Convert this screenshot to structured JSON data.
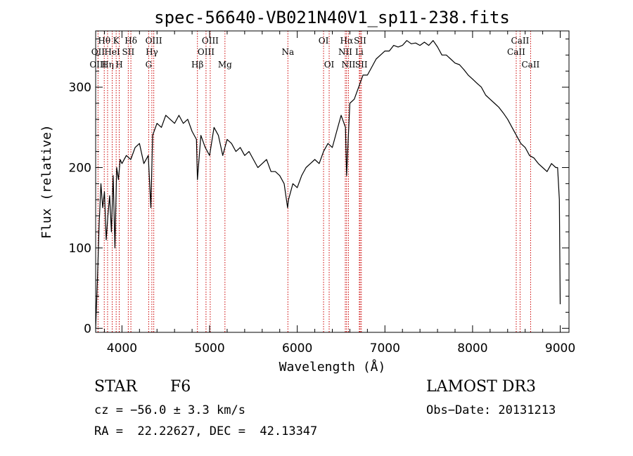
{
  "chart_data": {
    "type": "line",
    "title": "spec-56640-VB021N40V1_sp11-238.fits",
    "xlabel": "Wavelength (Å)",
    "ylabel": "Flux (relative)",
    "xlim": [
      3700,
      9100
    ],
    "ylim": [
      -5,
      370
    ],
    "x_ticks": [
      4000,
      5000,
      6000,
      7000,
      8000,
      9000
    ],
    "y_ticks": [
      0,
      100,
      200,
      300
    ],
    "series": [
      {
        "name": "spectrum",
        "x": [
          3700,
          3720,
          3740,
          3760,
          3780,
          3800,
          3820,
          3840,
          3860,
          3880,
          3900,
          3920,
          3940,
          3960,
          3980,
          4000,
          4050,
          4100,
          4150,
          4200,
          4250,
          4300,
          4330,
          4350,
          4400,
          4450,
          4500,
          4550,
          4600,
          4650,
          4700,
          4750,
          4800,
          4850,
          4861,
          4900,
          4950,
          5000,
          5050,
          5100,
          5150,
          5200,
          5250,
          5300,
          5350,
          5400,
          5450,
          5500,
          5550,
          5600,
          5650,
          5700,
          5750,
          5800,
          5850,
          5890,
          5900,
          5950,
          6000,
          6050,
          6100,
          6150,
          6200,
          6250,
          6300,
          6350,
          6400,
          6450,
          6500,
          6550,
          6563,
          6600,
          6650,
          6700,
          6750,
          6800,
          6850,
          6900,
          6950,
          7000,
          7050,
          7100,
          7150,
          7200,
          7250,
          7300,
          7350,
          7400,
          7450,
          7500,
          7550,
          7600,
          7650,
          7700,
          7750,
          7800,
          7850,
          7900,
          7950,
          8000,
          8050,
          8100,
          8150,
          8200,
          8250,
          8300,
          8350,
          8400,
          8450,
          8500,
          8550,
          8600,
          8650,
          8700,
          8750,
          8800,
          8850,
          8900,
          8950,
          8970,
          8990,
          9000
        ],
        "y": [
          0,
          60,
          130,
          180,
          150,
          170,
          110,
          140,
          165,
          120,
          190,
          100,
          200,
          185,
          210,
          205,
          215,
          210,
          225,
          230,
          205,
          215,
          150,
          240,
          255,
          250,
          265,
          260,
          255,
          265,
          255,
          260,
          245,
          235,
          185,
          240,
          225,
          215,
          250,
          240,
          215,
          235,
          230,
          220,
          225,
          215,
          220,
          210,
          200,
          205,
          210,
          195,
          195,
          190,
          180,
          150,
          160,
          180,
          175,
          190,
          200,
          205,
          210,
          205,
          220,
          230,
          225,
          245,
          265,
          250,
          190,
          280,
          285,
          300,
          315,
          315,
          325,
          335,
          340,
          345,
          345,
          352,
          350,
          352,
          358,
          354,
          355,
          352,
          356,
          352,
          358,
          350,
          340,
          340,
          335,
          330,
          328,
          322,
          315,
          310,
          305,
          300,
          290,
          285,
          280,
          275,
          268,
          260,
          250,
          240,
          230,
          225,
          215,
          212,
          205,
          200,
          195,
          205,
          200,
          200,
          160,
          30
        ]
      }
    ],
    "spectral_lines": [
      {
        "label": "Hθ",
        "x": 3798,
        "row": 1
      },
      {
        "label": "OII",
        "x": 3727,
        "row": 2
      },
      {
        "label": "OIII",
        "x": 3727,
        "row": 3
      },
      {
        "label": "Hη",
        "x": 3836,
        "row": 3
      },
      {
        "label": "K",
        "x": 3934,
        "row": 1
      },
      {
        "label": "HeI",
        "x": 3889,
        "row": 2
      },
      {
        "label": "SII",
        "x": 4072,
        "row": 2
      },
      {
        "label": "H",
        "x": 3969,
        "row": 3
      },
      {
        "label": "Hδ",
        "x": 4102,
        "row": 1
      },
      {
        "label": "OIII",
        "x": 4363,
        "row": 1
      },
      {
        "label": "Hγ",
        "x": 4341,
        "row": 2
      },
      {
        "label": "G",
        "x": 4305,
        "row": 3
      },
      {
        "label": "OIII",
        "x": 5007,
        "row": 1
      },
      {
        "label": "OIII",
        "x": 4959,
        "row": 2
      },
      {
        "label": "Hβ",
        "x": 4861,
        "row": 3
      },
      {
        "label": "Mg",
        "x": 5175,
        "row": 3
      },
      {
        "label": "Na",
        "x": 5893,
        "row": 2
      },
      {
        "label": "OI",
        "x": 6300,
        "row": 1
      },
      {
        "label": "OI",
        "x": 6364,
        "row": 3
      },
      {
        "label": "Hα",
        "x": 6563,
        "row": 1
      },
      {
        "label": "NII",
        "x": 6548,
        "row": 2
      },
      {
        "label": "NII",
        "x": 6584,
        "row": 3
      },
      {
        "label": "SII",
        "x": 6717,
        "row": 1
      },
      {
        "label": "Li",
        "x": 6708,
        "row": 2
      },
      {
        "label": "SII",
        "x": 6731,
        "row": 3
      },
      {
        "label": "CaII",
        "x": 8542,
        "row": 1
      },
      {
        "label": "CaII",
        "x": 8498,
        "row": 2
      },
      {
        "label": "CaII",
        "x": 8662,
        "row": 3
      }
    ],
    "line_color": "#cc0000",
    "spectrum_color": "#000000"
  },
  "info": {
    "class": "STAR",
    "subclass": "F6",
    "survey": "LAMOST DR3",
    "cz": "cz = −56.0 ± 3.3 km/s",
    "obs_date": "Obs−Date: 20131213",
    "coords": "RA =  22.22627, DEC =  42.13347"
  }
}
